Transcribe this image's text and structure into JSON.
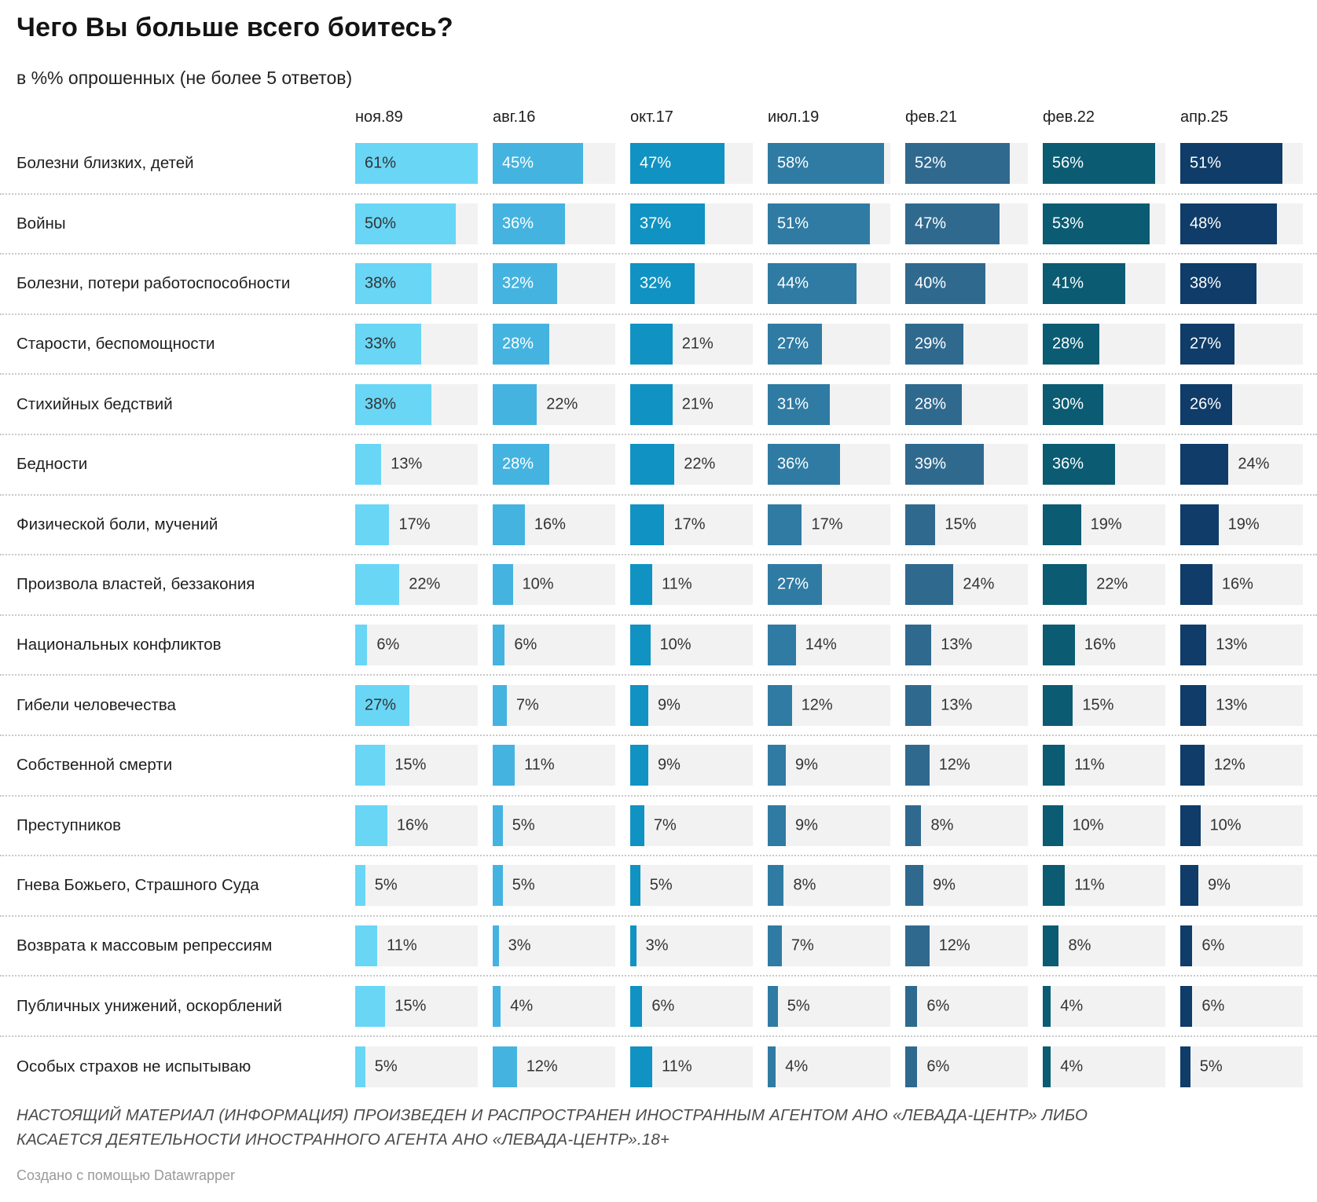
{
  "header": {
    "title": "Чего Вы больше всего боитесь?",
    "subtitle": "в %% опрошенных (не более 5 ответов)"
  },
  "chart_data": {
    "type": "bar",
    "orientation": "horizontal",
    "title": "Чего Вы больше всего боитесь?",
    "subtitle": "в %% опрошенных (не более 5 ответов)",
    "unit": "%",
    "xmax": 61,
    "label_inside_threshold": 26,
    "track_color": "#f2f2f2",
    "categories": [
      "Болезни близких, детей",
      "Войны",
      "Болезни, потери работоспособности",
      "Старости, беспомощности",
      "Стихийных бедствий",
      "Бедности",
      "Физической боли, мучений",
      "Произвола властей, беззакония",
      "Национальных конфликтов",
      "Гибели человечества",
      "Собственной смерти",
      "Преступников",
      "Гнева Божьего, Страшного Суда",
      "Возврата к массовым репрессиям",
      "Публичных унижений, оскорблений",
      "Особых страхов не испытываю"
    ],
    "series": [
      {
        "name": "ноя.89",
        "color": "#69d6f6",
        "label_color_inside": "#333333",
        "values": [
          61,
          50,
          38,
          33,
          38,
          13,
          17,
          22,
          6,
          27,
          15,
          16,
          5,
          11,
          15,
          5
        ]
      },
      {
        "name": "авг.16",
        "color": "#45b3e0",
        "label_color_inside": "#ffffff",
        "values": [
          45,
          36,
          32,
          28,
          22,
          28,
          16,
          10,
          6,
          7,
          11,
          5,
          5,
          3,
          4,
          12
        ]
      },
      {
        "name": "окт.17",
        "color": "#1092c2",
        "label_color_inside": "#ffffff",
        "values": [
          47,
          37,
          32,
          21,
          21,
          22,
          17,
          11,
          10,
          9,
          9,
          7,
          5,
          3,
          6,
          11
        ]
      },
      {
        "name": "июл.19",
        "color": "#2f7ba3",
        "label_color_inside": "#ffffff",
        "values": [
          58,
          51,
          44,
          27,
          31,
          36,
          17,
          27,
          14,
          12,
          9,
          9,
          8,
          7,
          5,
          4
        ]
      },
      {
        "name": "фев.21",
        "color": "#30698e",
        "label_color_inside": "#ffffff",
        "values": [
          52,
          47,
          40,
          29,
          28,
          39,
          15,
          24,
          13,
          13,
          12,
          8,
          9,
          12,
          6,
          6
        ]
      },
      {
        "name": "фев.22",
        "color": "#0b5b72",
        "label_color_inside": "#ffffff",
        "values": [
          56,
          53,
          41,
          28,
          30,
          36,
          19,
          22,
          16,
          15,
          11,
          10,
          11,
          8,
          4,
          4
        ]
      },
      {
        "name": "апр.25",
        "color": "#0f3c68",
        "label_color_inside": "#ffffff",
        "values": [
          51,
          48,
          38,
          27,
          26,
          24,
          19,
          16,
          13,
          13,
          12,
          10,
          9,
          6,
          6,
          5
        ]
      }
    ],
    "label_color_outside": "#333333",
    "legend_position": "top-as-column-headers",
    "grid": false
  },
  "footer": {
    "line1": "НАСТОЯЩИЙ МАТЕРИАЛ (ИНФОРМАЦИЯ) ПРОИЗВЕДЕН И РАСПРОСТРАНЕН ИНОСТРАННЫМ АГЕНТОМ АНО «ЛЕВАДА-ЦЕНТР» ЛИБО",
    "line2": "КАСАЕТСЯ ДЕЯТЕЛЬНОСТИ ИНОСТРАННОГО АГЕНТА АНО «ЛЕВАДА-ЦЕНТР».18+",
    "credit": "Создано с помощью Datawrapper"
  }
}
